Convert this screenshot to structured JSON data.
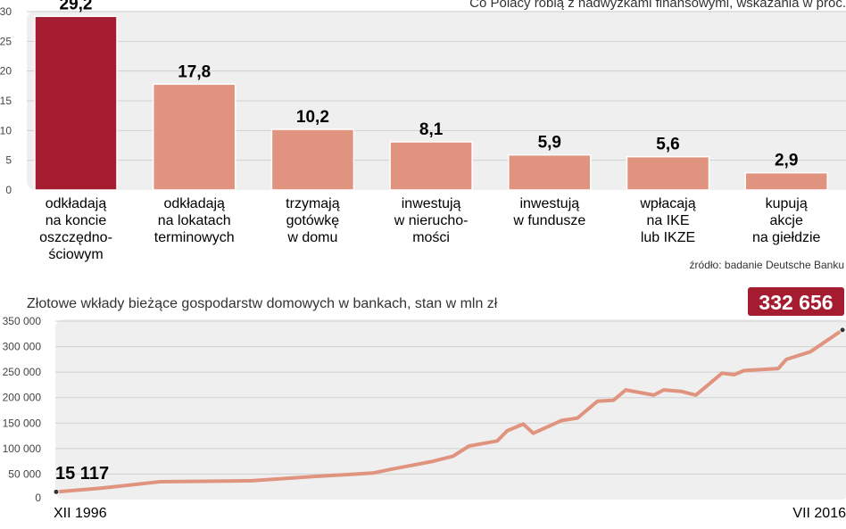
{
  "chart_data": [
    {
      "type": "bar",
      "title": "Co Polacy robią z nadwyżkami finansowymi, wskazania w proc.",
      "categories": [
        [
          "odkładają",
          "na koncie",
          "oszczędno-",
          "ściowym"
        ],
        [
          "odkładają",
          "na lokatach",
          "terminowych"
        ],
        [
          "trzymają",
          "gotówkę",
          "w domu"
        ],
        [
          "inwestują",
          "w nierucho-",
          "mości"
        ],
        [
          "inwestują",
          "w fundusze"
        ],
        [
          "wpłacają",
          "na IKE",
          "lub IKZE"
        ],
        [
          "kupują",
          "akcje",
          "na giełdzie"
        ]
      ],
      "values": [
        29.2,
        17.8,
        10.2,
        8.1,
        5.9,
        5.6,
        2.9
      ],
      "value_labels": [
        "29,2",
        "17,8",
        "10,2",
        "8,1",
        "5,9",
        "5,6",
        "2,9"
      ],
      "yticks": [
        "0",
        "5",
        "10",
        "15",
        "20",
        "25",
        "30"
      ],
      "ylim": [
        0,
        30
      ],
      "grid": true,
      "colors": {
        "highlight": "#a51c30",
        "bar": "#e0947f"
      },
      "source": "źródło: badanie Deutsche Banku"
    },
    {
      "type": "line",
      "title": "Złotowe wkłady bieżące gospodarstw domowych w bankach, stan w mln zł",
      "points": [
        [
          1996.92,
          15117
        ],
        [
          1998,
          22000
        ],
        [
          1999.5,
          35000
        ],
        [
          2001.8,
          37000
        ],
        [
          2003.3,
          45000
        ],
        [
          2004.8,
          52000
        ],
        [
          2005.3,
          60000
        ],
        [
          2006.3,
          75000
        ],
        [
          2006.8,
          85000
        ],
        [
          2007.2,
          105000
        ],
        [
          2007.9,
          115000
        ],
        [
          2008.15,
          135000
        ],
        [
          2008.55,
          148000
        ],
        [
          2008.8,
          130000
        ],
        [
          2009.5,
          155000
        ],
        [
          2009.9,
          160000
        ],
        [
          2010.4,
          193000
        ],
        [
          2010.8,
          195000
        ],
        [
          2011.1,
          215000
        ],
        [
          2011.8,
          205000
        ],
        [
          2012.05,
          215000
        ],
        [
          2012.5,
          212000
        ],
        [
          2012.85,
          205000
        ],
        [
          2013.5,
          248000
        ],
        [
          2013.8,
          245000
        ],
        [
          2014.05,
          253000
        ],
        [
          2014.9,
          257000
        ],
        [
          2015.1,
          275000
        ],
        [
          2015.7,
          290000
        ],
        [
          2016.5,
          332656
        ]
      ],
      "start_label": "15 117",
      "end_label": "332 656",
      "xlabels": [
        "XII 1996",
        "VII 2016"
      ],
      "yticks": [
        "0",
        "50 000",
        "100 000",
        "150 000",
        "200 000",
        "250 000",
        "300 000",
        "350 000"
      ],
      "ylim": [
        0,
        350000
      ],
      "grid": true,
      "colors": {
        "line": "#e0947f",
        "highlight": "#a51c30"
      }
    }
  ]
}
